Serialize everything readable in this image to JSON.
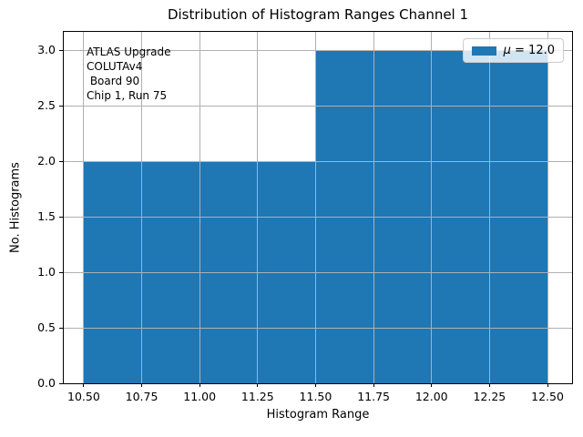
{
  "chart_data": {
    "type": "bar",
    "title": "Distribution of Histogram Ranges Channel 1",
    "xlabel": "Histogram Range",
    "ylabel": "No. Histograms",
    "bins": [
      {
        "range": [
          10.5,
          11.5
        ],
        "count": 2
      },
      {
        "range": [
          11.5,
          12.5
        ],
        "count": 3
      }
    ],
    "x_ticks": [
      "10.50",
      "10.75",
      "11.00",
      "11.25",
      "11.50",
      "11.75",
      "12.00",
      "12.25",
      "12.50"
    ],
    "y_ticks": [
      "0.0",
      "0.5",
      "1.0",
      "1.5",
      "2.0",
      "2.5",
      "3.0"
    ],
    "xlim": [
      10.414,
      12.606
    ],
    "ylim": [
      0,
      3.164
    ],
    "grid": true,
    "grid_over_bars": true,
    "legend": {
      "position": "upper right",
      "label": "μ = 12.0",
      "symbol": "μ",
      "rest": " = 12.0",
      "mu_value": 12.0
    },
    "annotation_lines": [
      "ATLAS Upgrade",
      "COLUTAv4",
      " Board 90",
      "Chip 1, Run 75"
    ],
    "colors": {
      "bar": "#1f77b4",
      "grid": "#b0b0b0",
      "spine": "#000000",
      "text": "#000000",
      "legend_border": "#cccccc",
      "legend_bg": "rgba(255,255,255,0.8)"
    }
  }
}
